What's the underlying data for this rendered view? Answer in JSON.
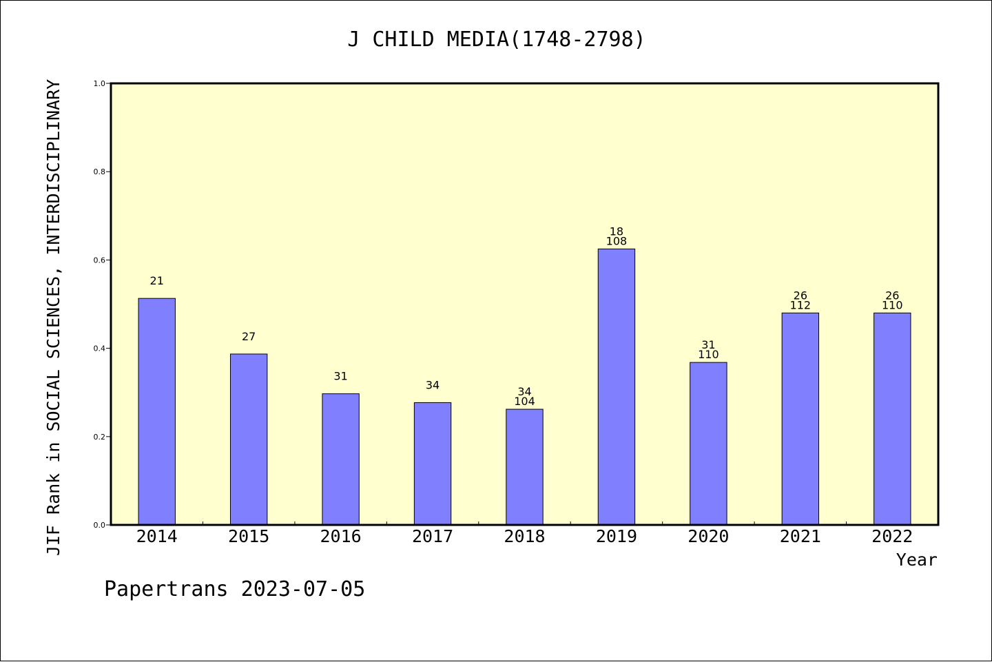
{
  "chart_data": {
    "type": "bar",
    "title": "J CHILD MEDIA(1748-2798)",
    "xlabel": "Year",
    "ylabel": "JIF Rank in SOCIAL SCIENCES, INTERDISCIPLINARY",
    "ylim": [
      0,
      1.0
    ],
    "yticks": [
      "0.0",
      "0.2",
      "0.4",
      "0.6",
      "0.8",
      "1.0"
    ],
    "categories": [
      "2014",
      "2015",
      "2016",
      "2017",
      "2018",
      "2019",
      "2020",
      "2021",
      "2022"
    ],
    "values": [
      0.513,
      0.387,
      0.297,
      0.277,
      0.262,
      0.625,
      0.368,
      0.48,
      0.48
    ],
    "labels": [
      [
        "21"
      ],
      [
        "27"
      ],
      [
        "31"
      ],
      [
        "34"
      ],
      [
        "34",
        "104"
      ],
      [
        "18",
        "108"
      ],
      [
        "31",
        "110"
      ],
      [
        "26",
        "112"
      ],
      [
        "26",
        "110"
      ]
    ],
    "grid": false,
    "colors": {
      "plot_background": "#ffffd0",
      "bar_fill": "#8080ff",
      "bar_stroke": "#000000"
    }
  },
  "footer": "Papertrans 2023-07-05"
}
